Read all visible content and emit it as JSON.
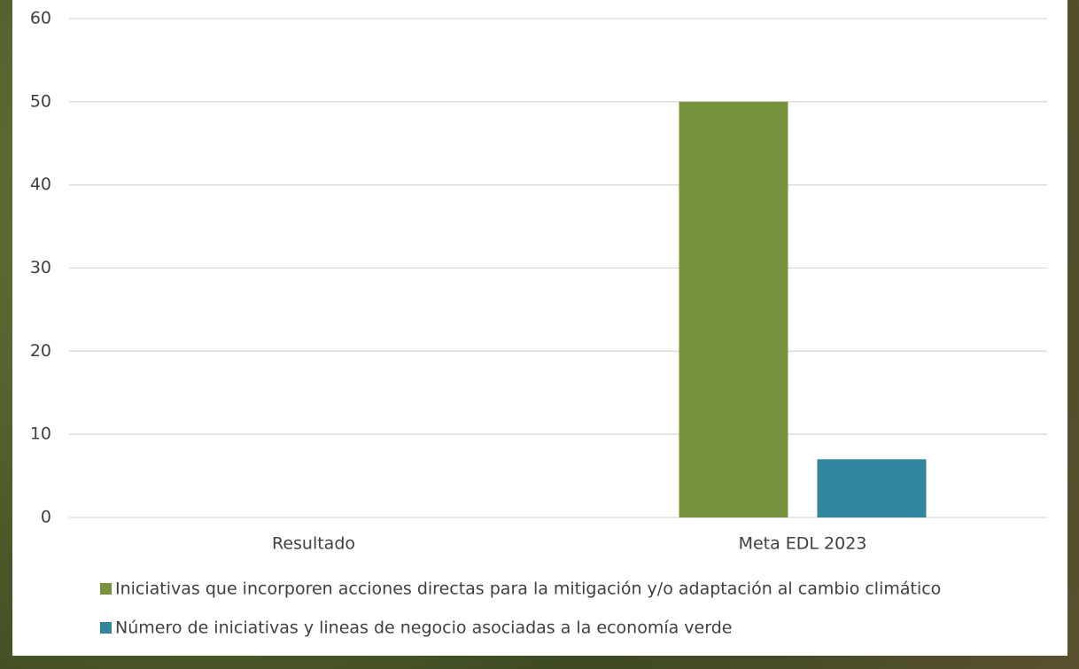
{
  "chart_data": {
    "type": "bar",
    "categories": [
      "Resultado",
      "Meta EDL 2023"
    ],
    "series": [
      {
        "name": "Iniciativas que incorporen acciones directas para la mitigación y/o adaptación al cambio climático",
        "color": "#77933c",
        "values": [
          0,
          50
        ]
      },
      {
        "name": "Número de iniciativas y lineas de negocio asociadas a la economía verde",
        "color": "#31859c",
        "values": [
          0,
          7
        ]
      }
    ],
    "ylim": [
      0,
      60
    ],
    "yticks": [
      0,
      10,
      20,
      30,
      40,
      50,
      60
    ],
    "grid": true
  }
}
